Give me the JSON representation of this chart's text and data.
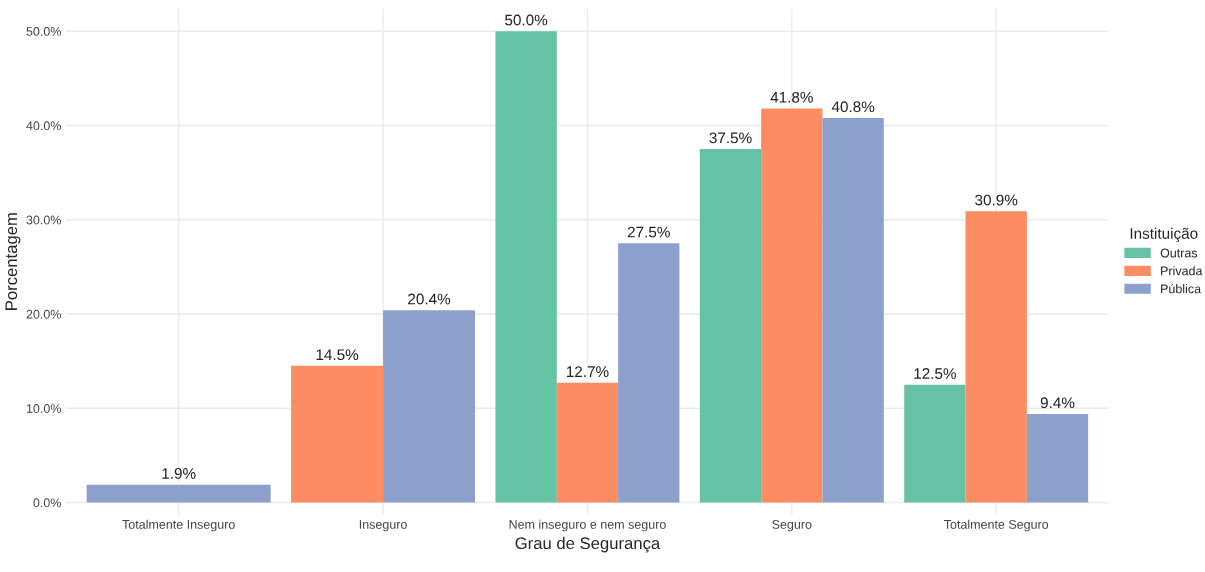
{
  "chart_data": {
    "type": "bar",
    "xlabel": "Grau de Segurança",
    "ylabel": "Porcentagem",
    "legend_title": "Instituição",
    "categories": [
      "Totalmente Inseguro",
      "Inseguro",
      "Nem inseguro e nem seguro",
      "Seguro",
      "Totalmente Seguro"
    ],
    "series": [
      {
        "name": "Outras",
        "color": "#66c2a5",
        "values": [
          null,
          null,
          50.0,
          37.5,
          12.5
        ],
        "value_labels": [
          null,
          null,
          "50.0%",
          "37.5%",
          "12.5%"
        ]
      },
      {
        "name": "Privada",
        "color": "#fc8d62",
        "values": [
          null,
          14.5,
          12.7,
          41.8,
          30.9
        ],
        "value_labels": [
          null,
          "14.5%",
          "12.7%",
          "41.8%",
          "30.9%"
        ]
      },
      {
        "name": "Pública",
        "color": "#8da0cb",
        "values": [
          1.9,
          20.4,
          27.5,
          40.8,
          9.4
        ],
        "value_labels": [
          "1.9%",
          "20.4%",
          "27.5%",
          "40.8%",
          "9.4%"
        ]
      }
    ],
    "ylim": [
      -1.3,
      52.4
    ],
    "yticks": [
      {
        "value": 0,
        "label": "0.0%"
      },
      {
        "value": 10,
        "label": "10.0%"
      },
      {
        "value": 20,
        "label": "20.0%"
      },
      {
        "value": 30,
        "label": "30.0%"
      },
      {
        "value": 40,
        "label": "40.0%"
      },
      {
        "value": 50,
        "label": "50.0%"
      }
    ],
    "grid": true,
    "legend": "right"
  }
}
